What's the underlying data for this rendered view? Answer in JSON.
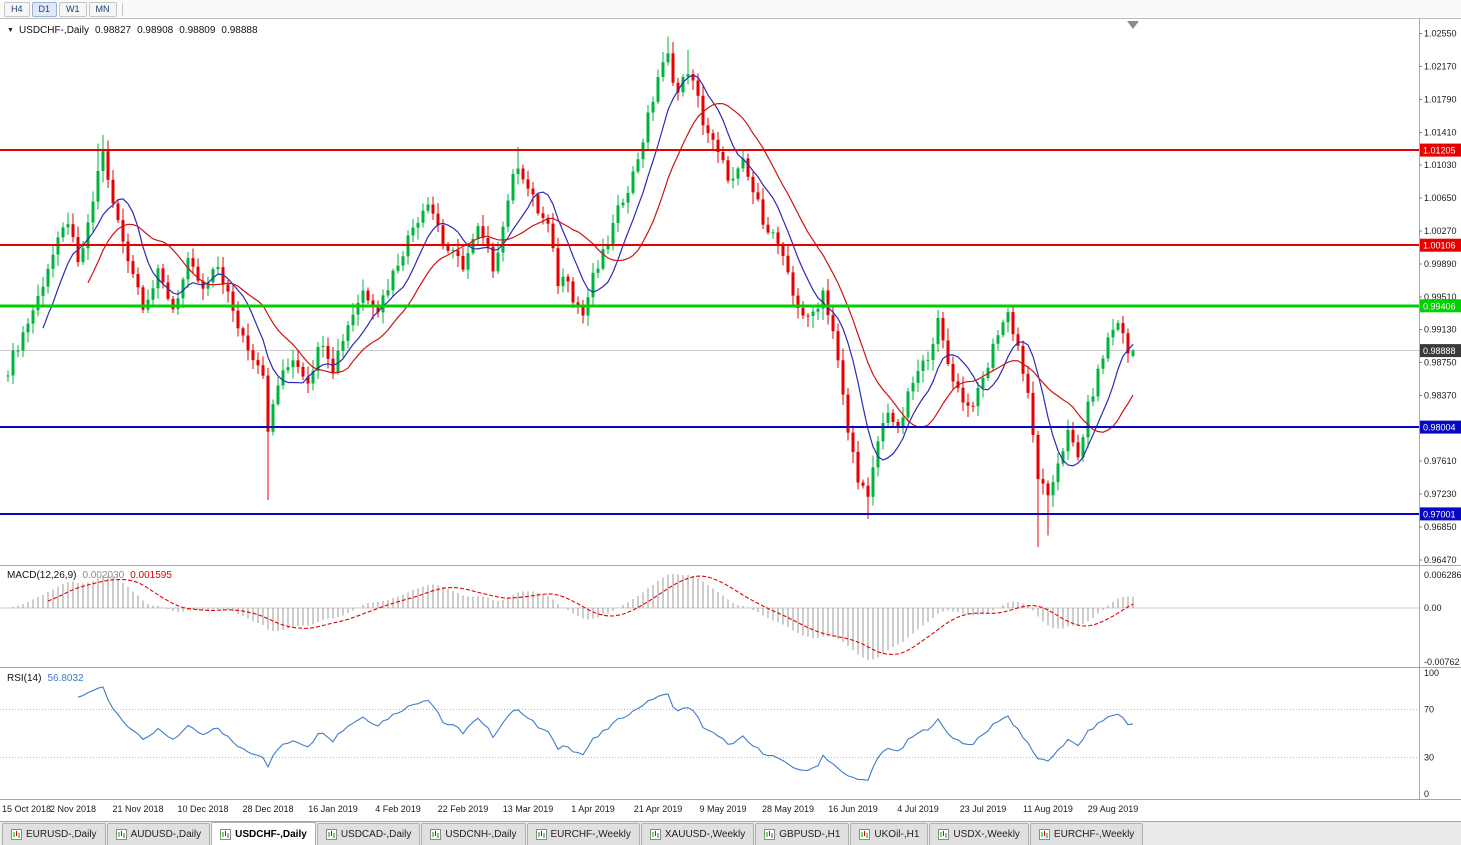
{
  "toolbar": {
    "timeframes": [
      "H4",
      "D1",
      "W1",
      "MN"
    ],
    "active": "D1"
  },
  "tabbar": {
    "active_index": 2,
    "tabs": [
      "EURUSD-,Daily",
      "AUDUSD-,Daily",
      "USDCHF-,Daily",
      "USDCAD-,Daily",
      "USDCNH-,Daily",
      "EURCHF-,Weekly",
      "XAUUSD-,Weekly",
      "GBPUSD-,H1",
      "UKOil-,H1",
      "USDX-,Weekly",
      "EURCHF-,Weekly"
    ]
  },
  "chart_data": {
    "main": {
      "type": "candlestick",
      "title": "USDCHF-,Daily",
      "symbol": "USDCHF-",
      "timeframe": "Daily",
      "ohlc_display": {
        "open": "0.98827",
        "high": "0.98908",
        "low": "0.98809",
        "close": "0.98888"
      },
      "bar_count": 226,
      "first_open": 0.986,
      "last_close": 0.98888,
      "price_range_visible": [
        0.9641,
        1.0272
      ],
      "up_color": "#00b33c",
      "down_color": "#e60000",
      "ma_fast": {
        "period": 8,
        "color": "#2a2ab8"
      },
      "ma_slow": {
        "period": 17,
        "color": "#cc1414"
      },
      "bid_line": 0.98888,
      "current_price_badge": {
        "label": "0.98888",
        "bg": "#3a3a3a"
      },
      "horizontal_levels": [
        {
          "value": 1.01205,
          "label": "1.01205",
          "color": "#e60000",
          "width": 2
        },
        {
          "value": 1.00106,
          "label": "1.00106",
          "color": "#e60000",
          "width": 2
        },
        {
          "value": 0.99406,
          "label": "0.99406",
          "color": "#00cf00",
          "width": 3
        },
        {
          "value": 0.98004,
          "label": "0.98004",
          "color": "#0707c4",
          "width": 2
        },
        {
          "value": 0.97001,
          "label": "0.97001",
          "color": "#0707c4",
          "width": 2
        }
      ],
      "y_axis_ticks": [
        "1.02550",
        "1.02170",
        "1.01790",
        "1.01410",
        "1.01030",
        "1.00650",
        "1.00270",
        "0.99890",
        "0.99510",
        "0.99130",
        "0.98750",
        "0.98370",
        "0.97990",
        "0.97610",
        "0.97230",
        "0.96850",
        "0.96470"
      ],
      "price_path": [
        [
          0,
          0.9868
        ],
        [
          2,
          0.9896
        ],
        [
          4,
          0.9922
        ],
        [
          6,
          0.995
        ],
        [
          8,
          0.9986
        ],
        [
          10,
          1.0012
        ],
        [
          12,
          1.004
        ],
        [
          13,
          1.0012
        ],
        [
          14,
          0.9986
        ],
        [
          16,
          1.003
        ],
        [
          18,
          1.0094
        ],
        [
          19,
          1.0122
        ],
        [
          20,
          1.0082
        ],
        [
          21,
          1.0058
        ],
        [
          23,
          1.0016
        ],
        [
          25,
          0.998
        ],
        [
          27,
          0.9944
        ],
        [
          29,
          0.9962
        ],
        [
          30,
          0.9976
        ],
        [
          32,
          0.9952
        ],
        [
          33,
          0.9938
        ],
        [
          35,
          0.997
        ],
        [
          36,
          0.9988
        ],
        [
          38,
          0.997
        ],
        [
          39,
          0.9956
        ],
        [
          41,
          0.9976
        ],
        [
          42,
          0.9986
        ],
        [
          44,
          0.9954
        ],
        [
          45,
          0.993
        ],
        [
          47,
          0.9906
        ],
        [
          49,
          0.9884
        ],
        [
          51,
          0.9866
        ],
        [
          52,
          0.979
        ],
        [
          53,
          0.9826
        ],
        [
          54,
          0.985
        ],
        [
          56,
          0.987
        ],
        [
          57,
          0.9882
        ],
        [
          59,
          0.9864
        ],
        [
          60,
          0.9856
        ],
        [
          62,
          0.9888
        ],
        [
          63,
          0.9902
        ],
        [
          64,
          0.9886
        ],
        [
          65,
          0.987
        ],
        [
          67,
          0.9904
        ],
        [
          68,
          0.992
        ],
        [
          70,
          0.9946
        ],
        [
          71,
          0.9958
        ],
        [
          73,
          0.9946
        ],
        [
          74,
          0.9938
        ],
        [
          76,
          0.9964
        ],
        [
          78,
          0.9992
        ],
        [
          80,
          1.0018
        ],
        [
          81,
          1.0032
        ],
        [
          83,
          1.0054
        ],
        [
          84,
          1.0064
        ],
        [
          86,
          1.0034
        ],
        [
          87,
          1.0012
        ],
        [
          89,
          0.9998
        ],
        [
          91,
          0.9988
        ],
        [
          93,
          1.0014
        ],
        [
          94,
          1.0028
        ],
        [
          96,
          1.0002
        ],
        [
          97,
          0.9986
        ],
        [
          99,
          1.0032
        ],
        [
          100,
          1.0066
        ],
        [
          102,
          1.0106
        ],
        [
          103,
          1.0092
        ],
        [
          104,
          1.0076
        ],
        [
          106,
          1.005
        ],
        [
          108,
          1.0032
        ],
        [
          110,
          0.9968
        ],
        [
          112,
          0.9976
        ],
        [
          113,
          0.9952
        ],
        [
          115,
          0.993
        ],
        [
          117,
          0.9972
        ],
        [
          119,
          0.9998
        ],
        [
          121,
          1.0032
        ],
        [
          123,
          1.0066
        ],
        [
          125,
          1.0092
        ],
        [
          127,
          1.0134
        ],
        [
          129,
          1.018
        ],
        [
          130,
          1.0206
        ],
        [
          132,
          1.0228
        ],
        [
          133,
          1.0206
        ],
        [
          134,
          1.0186
        ],
        [
          136,
          1.0214
        ],
        [
          138,
          1.0178
        ],
        [
          139,
          1.0154
        ],
        [
          141,
          1.0128
        ],
        [
          142,
          1.0114
        ],
        [
          144,
          1.0092
        ],
        [
          145,
          1.0084
        ],
        [
          147,
          1.0104
        ],
        [
          149,
          1.0072
        ],
        [
          151,
          1.0042
        ],
        [
          153,
          1.0022
        ],
        [
          154,
          1.0012
        ],
        [
          156,
          0.9972
        ],
        [
          157,
          0.9952
        ],
        [
          159,
          0.9932
        ],
        [
          160,
          0.9922
        ],
        [
          162,
          0.9944
        ],
        [
          163,
          0.9958
        ],
        [
          165,
          0.9912
        ],
        [
          166,
          0.9874
        ],
        [
          168,
          0.9794
        ],
        [
          170,
          0.9744
        ],
        [
          172,
          0.9714
        ],
        [
          174,
          0.9784
        ],
        [
          176,
          0.9822
        ],
        [
          178,
          0.9794
        ],
        [
          180,
          0.9834
        ],
        [
          181,
          0.9852
        ],
        [
          183,
          0.9872
        ],
        [
          184,
          0.9886
        ],
        [
          186,
          0.992
        ],
        [
          188,
          0.9874
        ],
        [
          190,
          0.9844
        ],
        [
          192,
          0.9824
        ],
        [
          194,
          0.9838
        ],
        [
          196,
          0.9872
        ],
        [
          198,
          0.9912
        ],
        [
          200,
          0.9932
        ],
        [
          202,
          0.9894
        ],
        [
          204,
          0.9834
        ],
        [
          206,
          0.9744
        ],
        [
          208,
          0.9714
        ],
        [
          210,
          0.9762
        ],
        [
          212,
          0.9792
        ],
        [
          214,
          0.9764
        ],
        [
          216,
          0.9822
        ],
        [
          218,
          0.9862
        ],
        [
          220,
          0.9902
        ],
        [
          222,
          0.9924
        ],
        [
          224,
          0.9886
        ],
        [
          225,
          0.98888
        ]
      ],
      "wick_extremes": [
        {
          "i": 18,
          "high": 1.0128
        },
        {
          "i": 19,
          "high": 1.0138
        },
        {
          "i": 52,
          "low": 0.9716
        },
        {
          "i": 102,
          "high": 1.0124
        },
        {
          "i": 132,
          "high": 1.0252
        },
        {
          "i": 136,
          "high": 1.0236
        },
        {
          "i": 172,
          "low": 0.9694
        },
        {
          "i": 206,
          "low": 0.9662
        },
        {
          "i": 208,
          "low": 0.9675
        }
      ]
    },
    "macd": {
      "type": "macd-histogram",
      "label": "MACD(12,26,9)",
      "params": [
        12,
        26,
        9
      ],
      "value_main": "0.002030",
      "value_signal": "0.001595",
      "axis_labels": [
        "0.006286",
        "0.00",
        "-0.00762"
      ],
      "histogram_color": "#9b9b9b",
      "signal_color": "#e60000"
    },
    "rsi": {
      "type": "rsi-line",
      "label": "RSI(14)",
      "period": 14,
      "value": "56.8032",
      "levels": [
        70,
        30
      ],
      "axis_labels": [
        "100",
        "70",
        "30",
        "0"
      ],
      "color": "#3f7cc9"
    },
    "x_axis": {
      "labels": [
        {
          "text": "15 Oct 2018",
          "i": 0
        },
        {
          "text": "2 Nov 2018",
          "i": 13
        },
        {
          "text": "21 Nov 2018",
          "i": 26
        },
        {
          "text": "10 Dec 2018",
          "i": 39
        },
        {
          "text": "28 Dec 2018",
          "i": 52
        },
        {
          "text": "16 Jan 2019",
          "i": 65
        },
        {
          "text": "4 Feb 2019",
          "i": 78
        },
        {
          "text": "22 Feb 2019",
          "i": 91
        },
        {
          "text": "13 Mar 2019",
          "i": 104
        },
        {
          "text": "1 Apr 2019",
          "i": 117
        },
        {
          "text": "21 Apr 2019",
          "i": 130
        },
        {
          "text": "9 May 2019",
          "i": 143
        },
        {
          "text": "28 May 2019",
          "i": 156
        },
        {
          "text": "16 Jun 2019",
          "i": 169
        },
        {
          "text": "4 Jul 2019",
          "i": 182
        },
        {
          "text": "23 Jul 2019",
          "i": 195
        },
        {
          "text": "11 Aug 2019",
          "i": 208
        },
        {
          "text": "29 Aug 2019",
          "i": 221
        }
      ]
    }
  }
}
